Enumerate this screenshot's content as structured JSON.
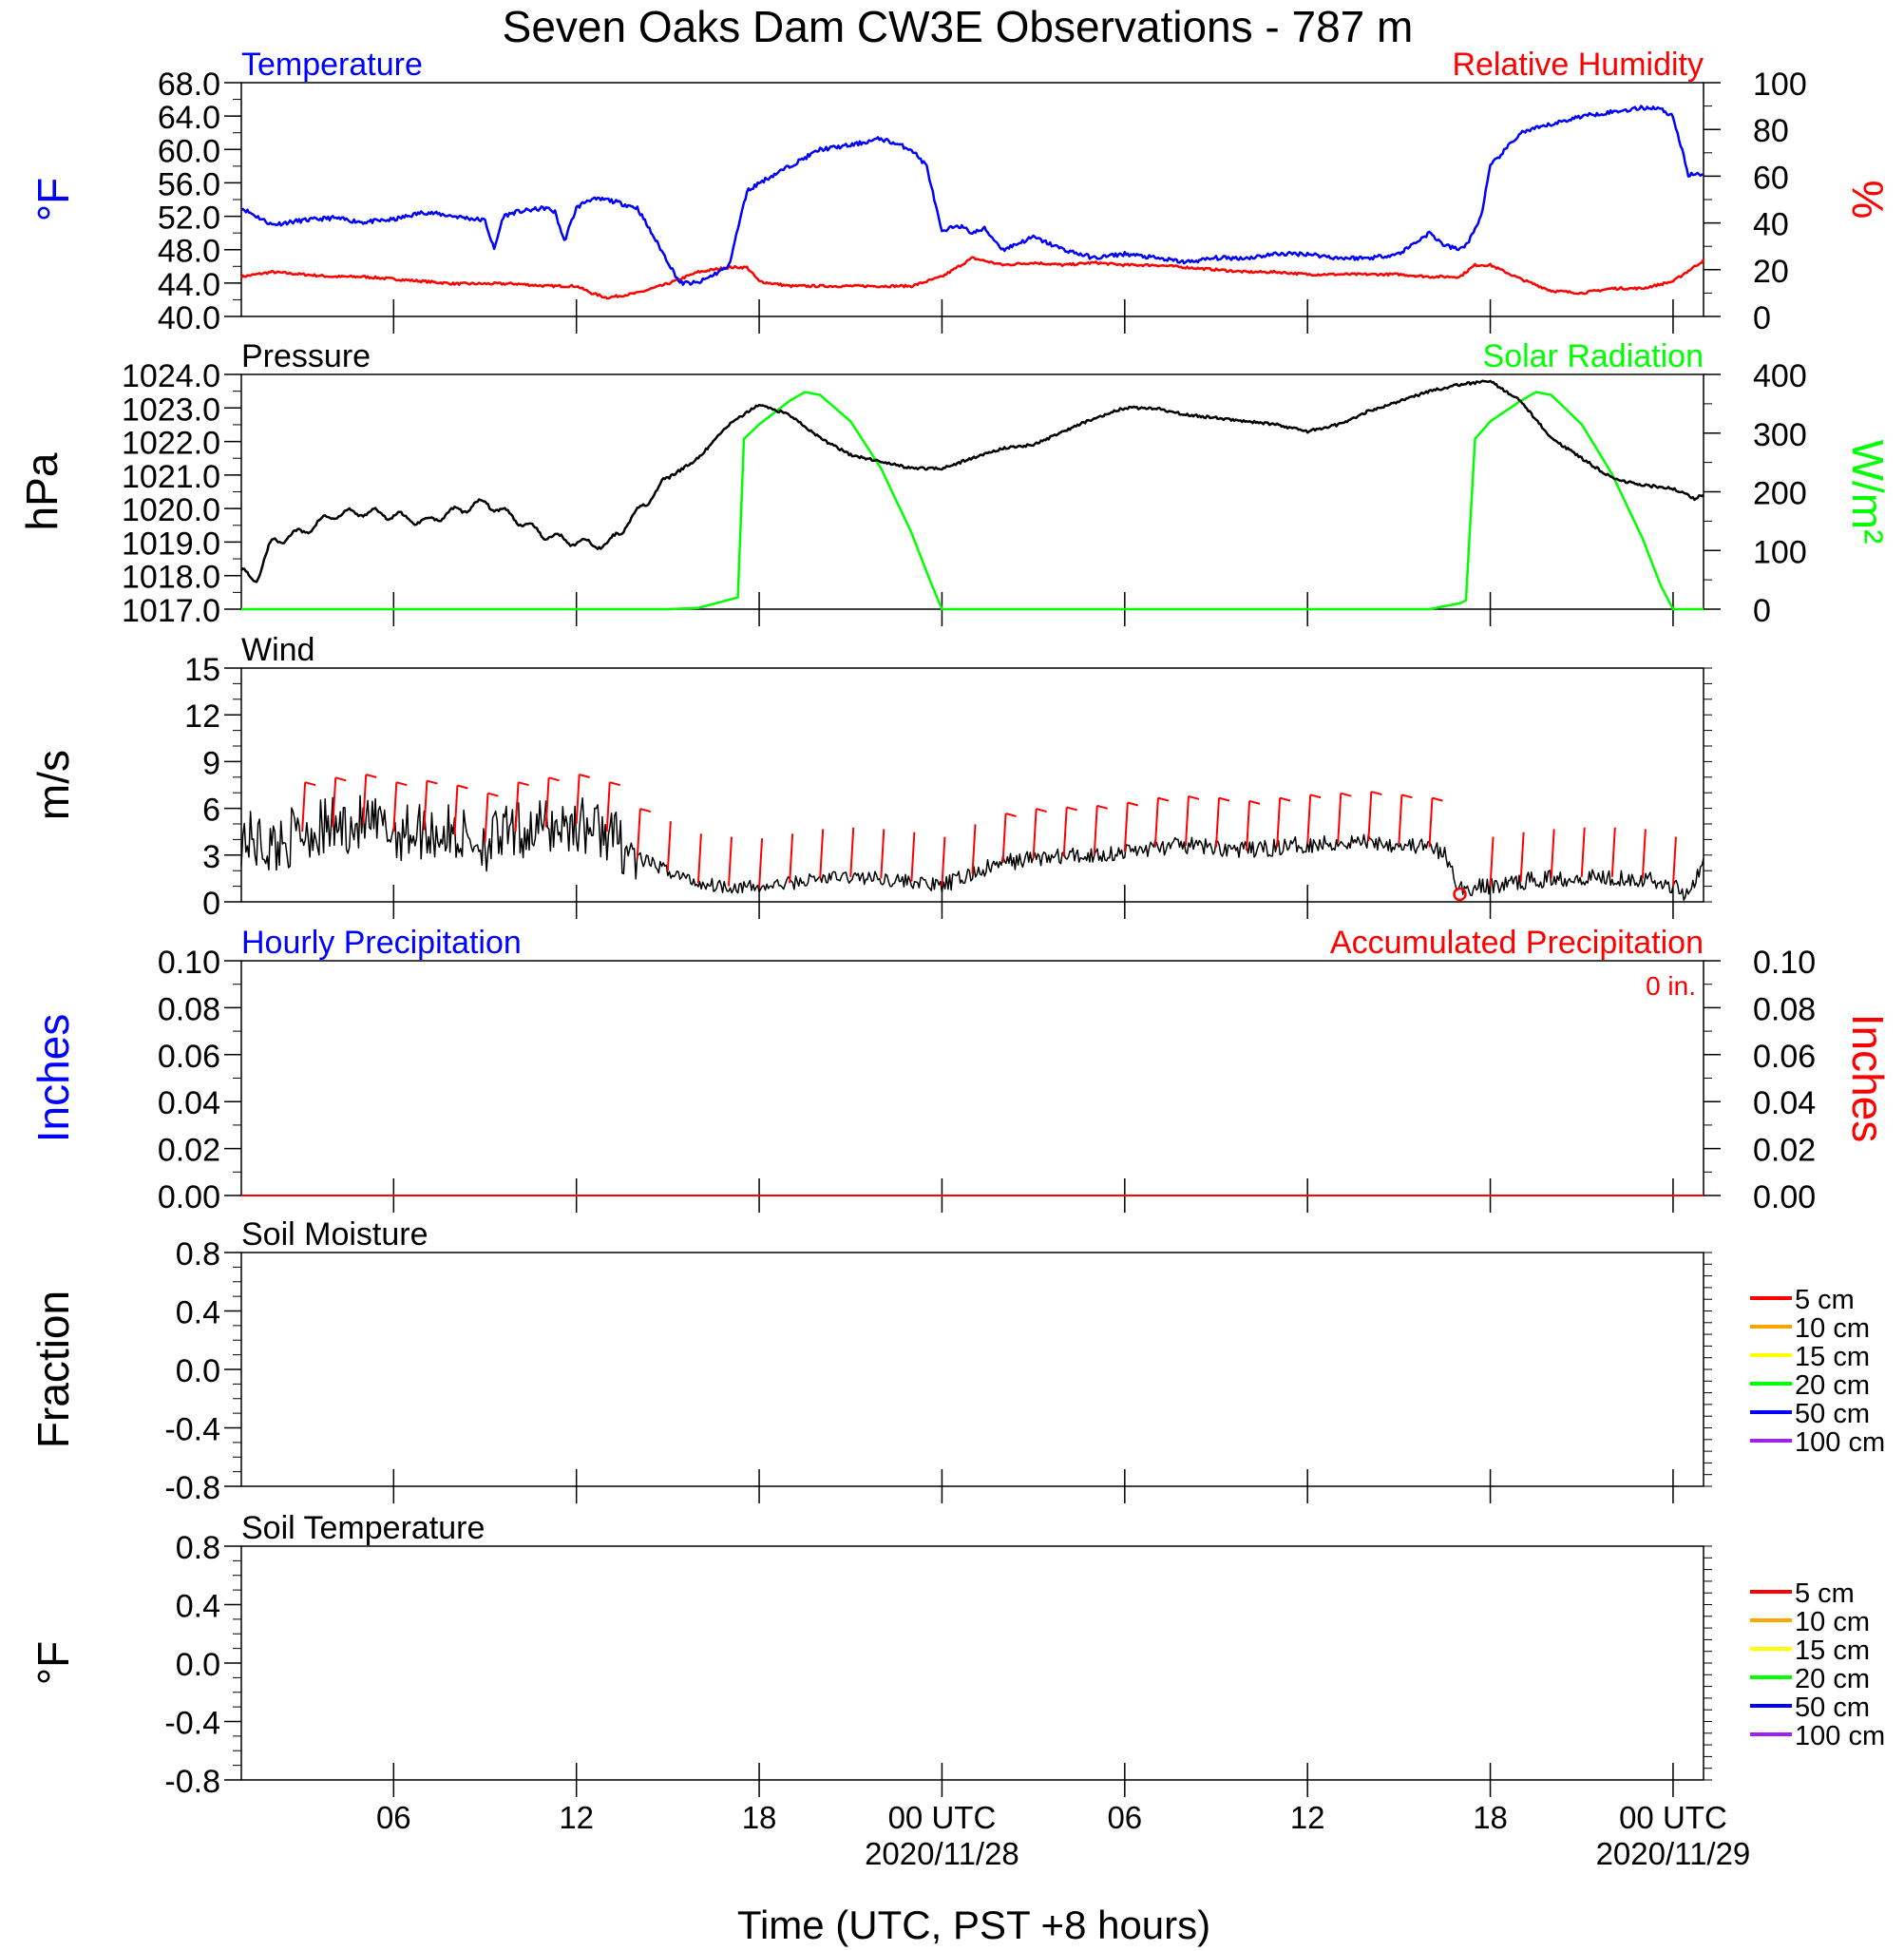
{
  "page_title": "Seven Oaks Dam CW3E Observations - 787 m",
  "colors": {
    "temperature": "#0000ff",
    "humidity": "#ff0000",
    "pressure": "#000000",
    "solar": "#00ff00",
    "wind": "#000000",
    "barb": "#ff0000",
    "hourly_precip": "#0000ff",
    "accum_precip": "#ff0000"
  },
  "x_axis": {
    "label": "Time (UTC, PST +8 hours)",
    "ticks": [
      {
        "hour": 6,
        "label": "06",
        "sublabel": ""
      },
      {
        "hour": 12,
        "label": "12",
        "sublabel": ""
      },
      {
        "hour": 18,
        "label": "18",
        "sublabel": ""
      },
      {
        "hour": 24,
        "label": "00 UTC",
        "sublabel": "2020/11/28"
      },
      {
        "hour": 30,
        "label": "06",
        "sublabel": ""
      },
      {
        "hour": 36,
        "label": "12",
        "sublabel": ""
      },
      {
        "hour": 42,
        "label": "18",
        "sublabel": ""
      },
      {
        "hour": 48,
        "label": "00 UTC",
        "sublabel": "2020/11/29"
      }
    ],
    "range_hours": [
      1,
      49
    ]
  },
  "panels": {
    "temp_rh": {
      "left_title": "Temperature",
      "right_title": "Relative Humidity",
      "left_unit": "°F",
      "right_unit": "%",
      "left_ticks": [
        "68.0",
        "64.0",
        "60.0",
        "56.0",
        "52.0",
        "48.0",
        "44.0",
        "40.0"
      ],
      "right_ticks": [
        "100",
        "80",
        "60",
        "40",
        "20",
        "0"
      ]
    },
    "pressure_solar": {
      "left_title": "Pressure",
      "right_title": "Solar Radiation",
      "left_unit": "hPa",
      "right_unit": "W/m²",
      "left_ticks": [
        "1024.0",
        "1023.0",
        "1022.0",
        "1021.0",
        "1020.0",
        "1019.0",
        "1018.0",
        "1017.0"
      ],
      "right_ticks": [
        "400",
        "300",
        "200",
        "100",
        "0"
      ]
    },
    "wind": {
      "left_title": "Wind",
      "left_unit": "m/s",
      "left_ticks": [
        "15",
        "12",
        "9",
        "6",
        "3",
        "0"
      ]
    },
    "precip": {
      "left_title": "Hourly Precipitation",
      "right_title": "Accumulated Precipitation",
      "accum_note": "0 in.",
      "left_unit": "Inches",
      "right_unit": "Inches",
      "left_ticks": [
        "0.10",
        "0.08",
        "0.06",
        "0.04",
        "0.02",
        "0.00"
      ],
      "right_ticks": [
        "0.10",
        "0.08",
        "0.06",
        "0.04",
        "0.02",
        "0.00"
      ]
    },
    "soil_moisture": {
      "left_title": "Soil Moisture",
      "left_unit": "Fraction",
      "left_ticks": [
        "0.8",
        "0.4",
        "0.0",
        "-0.4",
        "-0.8"
      ]
    },
    "soil_temperature": {
      "left_title": "Soil Temperature",
      "left_unit": "°F",
      "left_ticks": [
        "0.8",
        "0.4",
        "0.0",
        "-0.4",
        "-0.8"
      ]
    }
  },
  "legend": [
    {
      "label": "5 cm",
      "color": "#ff0000"
    },
    {
      "label": "10 cm",
      "color": "#ffa500"
    },
    {
      "label": "15 cm",
      "color": "#ffff00"
    },
    {
      "label": "20 cm",
      "color": "#00ff00"
    },
    {
      "label": "50 cm",
      "color": "#0000ff"
    },
    {
      "label": "100 cm",
      "color": "#a020f0"
    }
  ],
  "chart_data": [
    {
      "type": "line",
      "title": "Temperature / Relative Humidity",
      "xlabel": "Time (UTC, PST +8 hours)",
      "ylabel": "°F",
      "ylabel_right": "%",
      "ylim": [
        40,
        68
      ],
      "ylim_right": [
        0,
        100
      ],
      "series": [
        {
          "name": "Temperature",
          "axis": "left",
          "x": [
            1,
            2,
            3,
            4,
            5,
            6,
            7,
            8,
            9,
            9.3,
            9.6,
            10,
            11,
            11.3,
            11.6,
            12,
            12.4,
            13,
            14,
            14.7,
            15.4,
            16,
            16.5,
            17,
            17.6,
            18,
            19,
            20,
            21,
            22,
            23,
            23.5,
            24,
            24.5,
            25,
            25.4,
            26,
            27,
            28,
            29,
            30,
            31,
            32,
            33,
            34,
            35,
            36,
            37,
            38,
            39,
            40,
            40.5,
            41,
            41.3,
            41.7,
            42,
            43,
            44,
            45,
            46,
            47,
            47.5,
            48,
            48.5,
            49
          ],
          "values": [
            53,
            51,
            51.5,
            51.8,
            51.3,
            51.6,
            52.5,
            52,
            51.5,
            48,
            52,
            52.5,
            53,
            52.5,
            49,
            53,
            54,
            54,
            53,
            48.5,
            44,
            44,
            45,
            46,
            55,
            56,
            58,
            60,
            60.5,
            61.3,
            60,
            58,
            50,
            51,
            50,
            50.5,
            48,
            49.5,
            48,
            47,
            47.5,
            47,
            46.5,
            47,
            47,
            47.5,
            47.5,
            47,
            47,
            47.5,
            50,
            48.5,
            48,
            49,
            52,
            58,
            62,
            63,
            64,
            64.5,
            65,
            65,
            64,
            57,
            57
          ]
        },
        {
          "name": "Relative Humidity",
          "axis": "right",
          "x": [
            1,
            2,
            3,
            4,
            5,
            6,
            7,
            8,
            9,
            10,
            11,
            12,
            12.5,
            13,
            14,
            15,
            16,
            17,
            17.6,
            18,
            19,
            20,
            21,
            22,
            23,
            24,
            25,
            26,
            27,
            28,
            29,
            30,
            31,
            32,
            33,
            34,
            35,
            36,
            37,
            38,
            39,
            40,
            41,
            41.5,
            42,
            43,
            44,
            45,
            46,
            47,
            48,
            49
          ],
          "values": [
            17,
            19,
            18,
            17,
            17,
            16,
            15,
            14,
            14,
            14,
            13,
            13,
            10,
            8,
            10,
            14,
            19,
            21,
            21,
            15,
            13,
            13,
            13,
            13,
            13,
            17,
            25,
            22,
            23,
            22,
            23,
            22,
            22,
            21,
            20,
            19,
            19,
            18,
            18,
            18,
            18,
            17,
            17,
            22,
            22,
            16,
            11,
            10,
            12,
            12,
            15,
            24
          ]
        }
      ]
    },
    {
      "type": "line",
      "title": "Pressure / Solar Radiation",
      "xlabel": "Time (UTC, PST +8 hours)",
      "ylabel": "hPa",
      "ylabel_right": "W/m²",
      "ylim": [
        1017,
        1024
      ],
      "ylim_right": [
        0,
        400
      ],
      "series": [
        {
          "name": "Pressure",
          "axis": "left",
          "x": [
            1,
            1.5,
            2,
            3,
            4,
            5,
            6,
            7,
            8,
            9,
            10,
            11,
            12,
            13,
            14,
            15,
            16,
            17,
            18,
            19,
            20,
            21,
            22,
            23,
            24,
            25,
            26,
            27,
            28,
            29,
            30,
            31,
            32,
            33,
            34,
            35,
            36,
            37,
            38,
            39,
            40,
            41,
            42,
            43,
            44,
            45,
            46,
            47,
            48,
            48.7,
            49
          ],
          "values": [
            1018.1,
            1017.9,
            1019.0,
            1019.3,
            1019.8,
            1019.9,
            1019.8,
            1019.6,
            1019.9,
            1020.2,
            1019.7,
            1019.2,
            1019.0,
            1018.9,
            1019.9,
            1020.9,
            1021.5,
            1022.5,
            1023.1,
            1022.8,
            1022.1,
            1021.6,
            1021.4,
            1021.2,
            1021.2,
            1021.5,
            1021.8,
            1021.9,
            1022.3,
            1022.7,
            1023.0,
            1023.0,
            1022.8,
            1022.7,
            1022.6,
            1022.5,
            1022.3,
            1022.5,
            1022.9,
            1023.2,
            1023.5,
            1023.7,
            1023.8,
            1023.2,
            1022.1,
            1021.5,
            1020.9,
            1020.7,
            1020.6,
            1020.3,
            1020.4
          ]
        },
        {
          "name": "Solar Radiation",
          "axis": "right",
          "x": [
            1,
            15,
            16,
            17.3,
            17.5,
            18,
            19,
            19.5,
            20,
            21,
            22,
            23,
            23.6,
            24,
            40,
            41,
            41.2,
            41.5,
            42,
            43,
            43.5,
            44,
            45,
            46,
            47,
            47.6,
            48,
            49
          ],
          "values": [
            0,
            0,
            2,
            20,
            290,
            315,
            355,
            370,
            365,
            320,
            240,
            130,
            50,
            0,
            0,
            10,
            15,
            290,
            320,
            355,
            370,
            365,
            315,
            230,
            120,
            40,
            0,
            0
          ]
        }
      ]
    },
    {
      "type": "line",
      "title": "Wind",
      "xlabel": "Time (UTC, PST +8 hours)",
      "ylabel": "m/s",
      "ylim": [
        0,
        15
      ],
      "series": [
        {
          "name": "Wind",
          "axis": "left",
          "x": [
            1,
            2,
            3,
            4,
            5,
            6,
            7,
            8,
            9,
            10,
            11,
            12,
            13,
            14,
            15,
            16,
            17,
            18,
            19,
            20,
            21,
            22,
            23,
            24,
            25,
            26,
            27,
            28,
            29,
            30,
            31,
            32,
            33,
            34,
            35,
            36,
            37,
            38,
            39,
            40,
            40.5,
            41,
            42,
            43,
            44,
            45,
            46,
            47,
            48,
            48.5,
            49
          ],
          "values": [
            4.2,
            3.5,
            4.5,
            4.8,
            5.0,
            4.5,
            4.6,
            4.3,
            3.8,
            4.5,
            4.8,
            5.0,
            4.5,
            2.8,
            2.0,
            1.2,
            1.0,
            0.9,
            1.2,
            1.5,
            1.6,
            1.5,
            1.3,
            1.0,
            1.8,
            2.5,
            2.8,
            2.9,
            3.0,
            3.2,
            3.5,
            3.6,
            3.5,
            3.3,
            3.5,
            3.7,
            3.8,
            3.9,
            3.7,
            3.5,
            3.0,
            0.8,
            1.0,
            1.3,
            1.5,
            1.6,
            1.6,
            1.5,
            1.0,
            0.5,
            2.8
          ]
        }
      ]
    },
    {
      "type": "line",
      "title": "Hourly Precipitation / Accumulated Precipitation",
      "xlabel": "Time (UTC, PST +8 hours)",
      "ylabel": "Inches",
      "ylabel_right": "Inches",
      "ylim": [
        0,
        0.1
      ],
      "ylim_right": [
        0,
        0.1
      ],
      "series": [
        {
          "name": "Hourly Precipitation",
          "axis": "left",
          "x": [
            1,
            49
          ],
          "values": [
            0,
            0
          ]
        },
        {
          "name": "Accumulated Precipitation",
          "axis": "right",
          "x": [
            1,
            49
          ],
          "values": [
            0,
            0
          ]
        }
      ]
    },
    {
      "type": "line",
      "title": "Soil Moisture",
      "xlabel": "Time (UTC, PST +8 hours)",
      "ylabel": "Fraction",
      "ylim": [
        -1,
        1
      ],
      "series": []
    },
    {
      "type": "line",
      "title": "Soil Temperature",
      "xlabel": "Time (UTC, PST +8 hours)",
      "ylabel": "°F",
      "ylim": [
        -1,
        1
      ],
      "series": []
    }
  ]
}
